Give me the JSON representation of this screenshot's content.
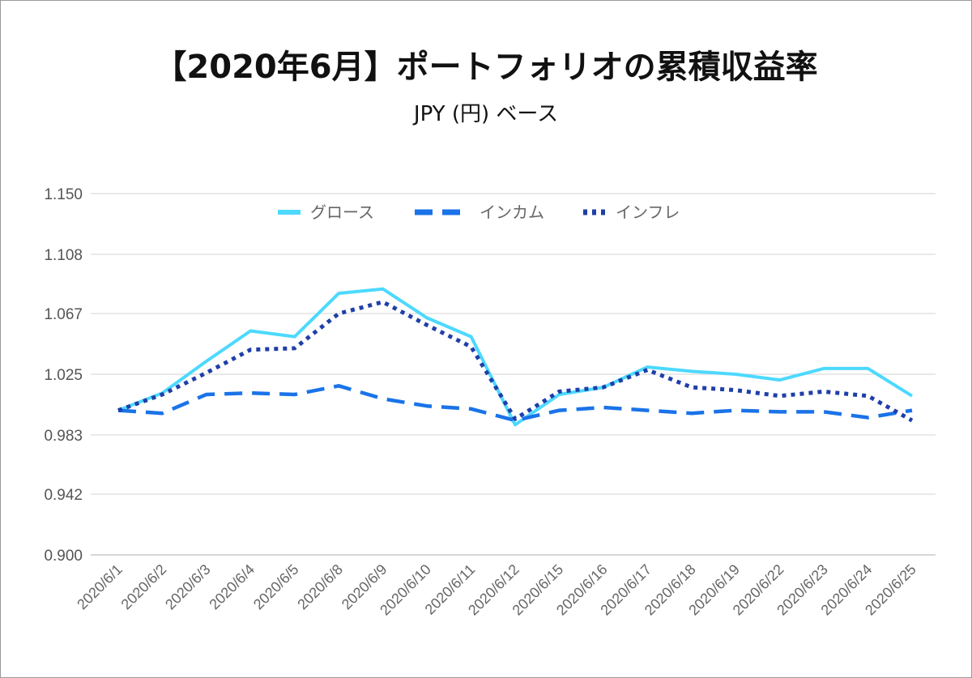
{
  "title": "【2020年6月】ポートフォリオの累積収益率",
  "subtitle": "JPY (円) ベース",
  "chart_data": {
    "type": "line",
    "title": "【2020年6月】ポートフォリオの累積収益率",
    "subtitle": "JPY (円) ベース",
    "xlabel": "",
    "ylabel": "",
    "ylim": [
      0.9,
      1.15
    ],
    "yticks": [
      "0.900",
      "0.942",
      "0.983",
      "1.025",
      "1.067",
      "1.108",
      "1.150"
    ],
    "grid": true,
    "legend_position": "top-center",
    "categories": [
      "2020/6/1",
      "2020/6/2",
      "2020/6/3",
      "2020/6/4",
      "2020/6/5",
      "2020/6/8",
      "2020/6/9",
      "2020/6/10",
      "2020/6/11",
      "2020/6/12",
      "2020/6/15",
      "2020/6/16",
      "2020/6/17",
      "2020/6/18",
      "2020/6/19",
      "2020/6/22",
      "2020/6/23",
      "2020/6/24",
      "2020/6/25"
    ],
    "series": [
      {
        "name": "グロース",
        "color": "#4dd9ff",
        "style": "solid",
        "values": [
          1.0,
          1.012,
          1.034,
          1.055,
          1.051,
          1.081,
          1.084,
          1.064,
          1.051,
          0.99,
          1.011,
          1.016,
          1.03,
          1.027,
          1.025,
          1.021,
          1.029,
          1.029,
          1.01
        ]
      },
      {
        "name": "インカム",
        "color": "#1a73e8",
        "style": "dashed",
        "values": [
          1.0,
          0.998,
          1.011,
          1.012,
          1.011,
          1.017,
          1.008,
          1.003,
          1.001,
          0.993,
          1.0,
          1.002,
          1.0,
          0.998,
          1.0,
          0.999,
          0.999,
          0.995,
          1.0
        ]
      },
      {
        "name": "インフレ",
        "color": "#1f3fa8",
        "style": "dotted",
        "values": [
          1.0,
          1.011,
          1.026,
          1.042,
          1.043,
          1.067,
          1.075,
          1.059,
          1.044,
          0.994,
          1.013,
          1.016,
          1.028,
          1.016,
          1.014,
          1.01,
          1.013,
          1.01,
          0.993
        ]
      }
    ]
  }
}
